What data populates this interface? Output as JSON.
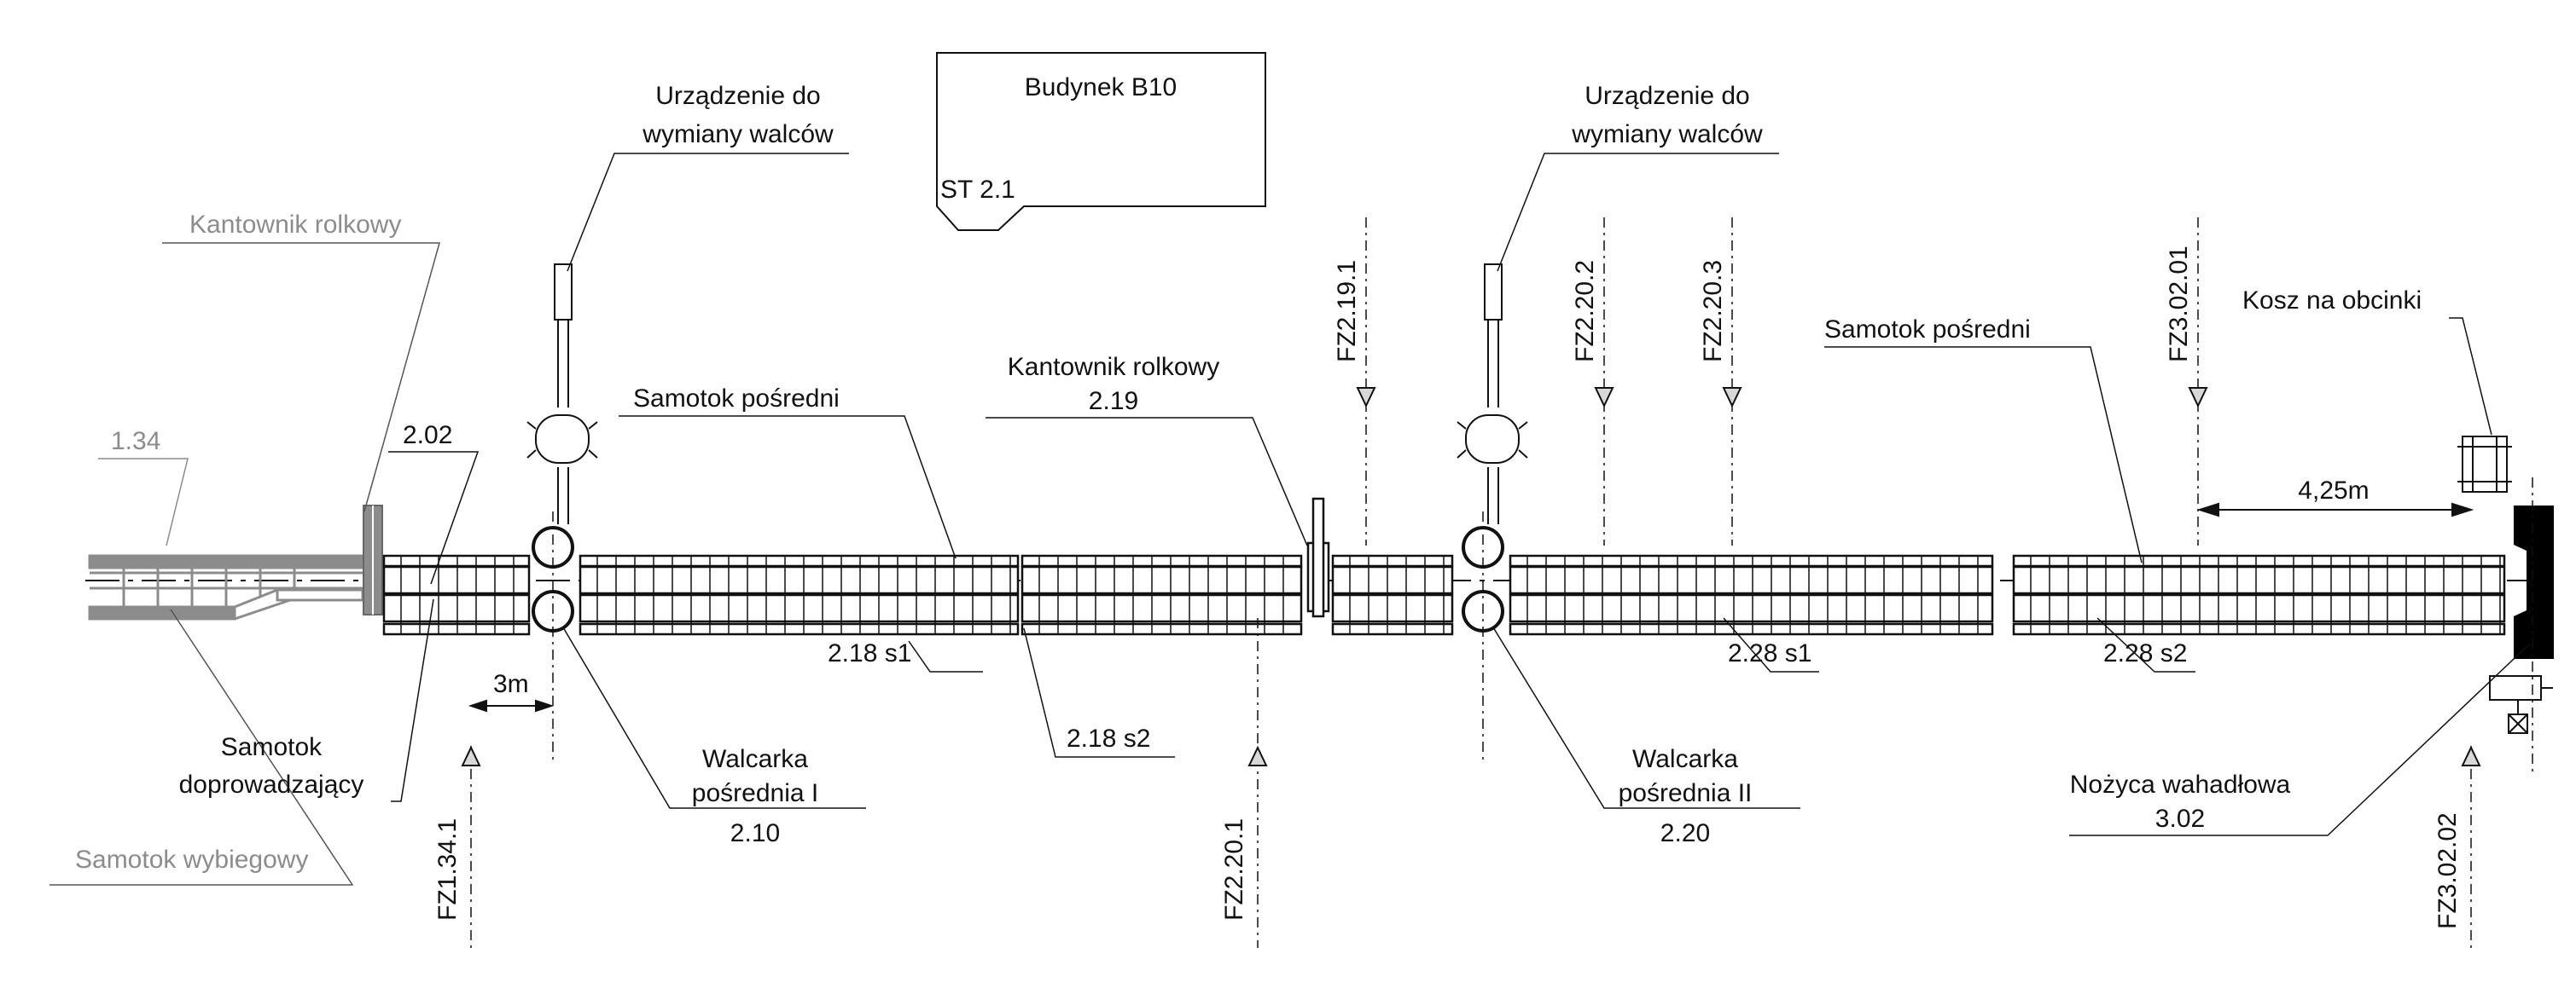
{
  "building": {
    "title": "Budynek B10",
    "station": "ST 2.1"
  },
  "labels": {
    "kantownik_1": "Kantownik rolkowy",
    "samotok_wybiegowy": "Samotok wybiegowy",
    "ref_134": "1.34",
    "ref_202": "2.02",
    "samotok_doprowadzajacy_1": "Samotok",
    "samotok_doprowadzajacy_2": "doprowadzający",
    "urzadzenie_1a": "Urządzenie do",
    "urzadzenie_1b": "wymiany walców",
    "urzadzenie_2a": "Urządzenie do",
    "urzadzenie_2b": "wymiany walców",
    "samotok_posredni_1": "Samotok pośredni",
    "samotok_posredni_2": "Samotok pośredni",
    "kantownik_2a": "Kantownik rolkowy",
    "kantownik_2b": "2.19",
    "ref_218s1": "2.18 s1",
    "ref_218s2": "2.18 s2",
    "ref_228s1": "2.28 s1",
    "ref_228s2": "2.28 s2",
    "walcarka_1a": "Walcarka",
    "walcarka_1b": "pośrednia I",
    "walcarka_1c": "2.10",
    "walcarka_2a": "Walcarka",
    "walcarka_2b": "pośrednia II",
    "walcarka_2c": "2.20",
    "nozyca_a": "Nożyca wahadłowa",
    "nozyca_b": "3.02",
    "kosz": "Kosz na obcinki",
    "dim_3m": "3m",
    "dim_425": "4,25m"
  },
  "sensors": {
    "fz1341": "FZ1.34.1",
    "fz2201": "FZ2.20.1",
    "fz2191": "FZ2.19.1",
    "fz2202": "FZ2.20.2",
    "fz2203": "FZ2.20.3",
    "fz30201": "FZ3.02.01",
    "fz30202": "FZ3.02.02"
  },
  "colors": {
    "line": "#111111",
    "grey": "#8c8c8c",
    "fill_black": "#000000"
  }
}
